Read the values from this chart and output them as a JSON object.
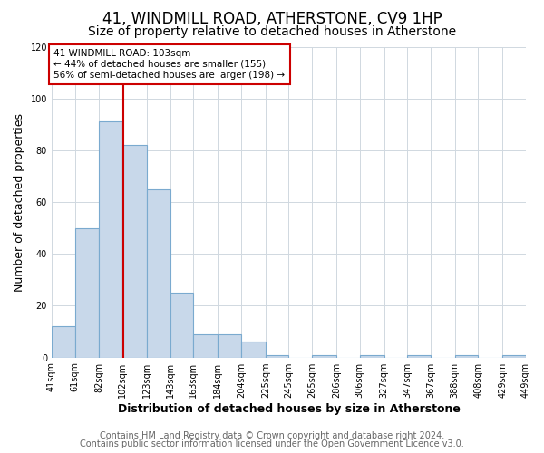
{
  "title": "41, WINDMILL ROAD, ATHERSTONE, CV9 1HP",
  "subtitle": "Size of property relative to detached houses in Atherstone",
  "xlabel": "Distribution of detached houses by size in Atherstone",
  "ylabel": "Number of detached properties",
  "bar_edges": [
    41,
    61,
    82,
    102,
    123,
    143,
    163,
    184,
    204,
    225,
    245,
    265,
    286,
    306,
    327,
    347,
    367,
    388,
    408,
    429,
    449
  ],
  "bar_heights": [
    12,
    50,
    91,
    82,
    65,
    25,
    9,
    9,
    6,
    1,
    0,
    1,
    0,
    1,
    0,
    1,
    0,
    1,
    0,
    1
  ],
  "bar_color": "#c8d8ea",
  "bar_edgecolor": "#7aaacf",
  "vline_x": 103,
  "vline_color": "#cc0000",
  "annotation_box_color": "#cc0000",
  "annotation_lines": [
    "41 WINDMILL ROAD: 103sqm",
    "← 44% of detached houses are smaller (155)",
    "56% of semi-detached houses are larger (198) →"
  ],
  "ylim": [
    0,
    120
  ],
  "yticks": [
    0,
    20,
    40,
    60,
    80,
    100,
    120
  ],
  "tick_labels": [
    "41sqm",
    "61sqm",
    "82sqm",
    "102sqm",
    "123sqm",
    "143sqm",
    "163sqm",
    "184sqm",
    "204sqm",
    "225sqm",
    "245sqm",
    "265sqm",
    "286sqm",
    "306sqm",
    "327sqm",
    "347sqm",
    "367sqm",
    "388sqm",
    "408sqm",
    "429sqm",
    "449sqm"
  ],
  "footer_line1": "Contains HM Land Registry data © Crown copyright and database right 2024.",
  "footer_line2": "Contains public sector information licensed under the Open Government Licence v3.0.",
  "background_color": "#ffffff",
  "plot_background": "#ffffff",
  "grid_color": "#d0d8e0",
  "title_fontsize": 12,
  "subtitle_fontsize": 10,
  "axis_label_fontsize": 9,
  "tick_fontsize": 7,
  "footer_fontsize": 7
}
